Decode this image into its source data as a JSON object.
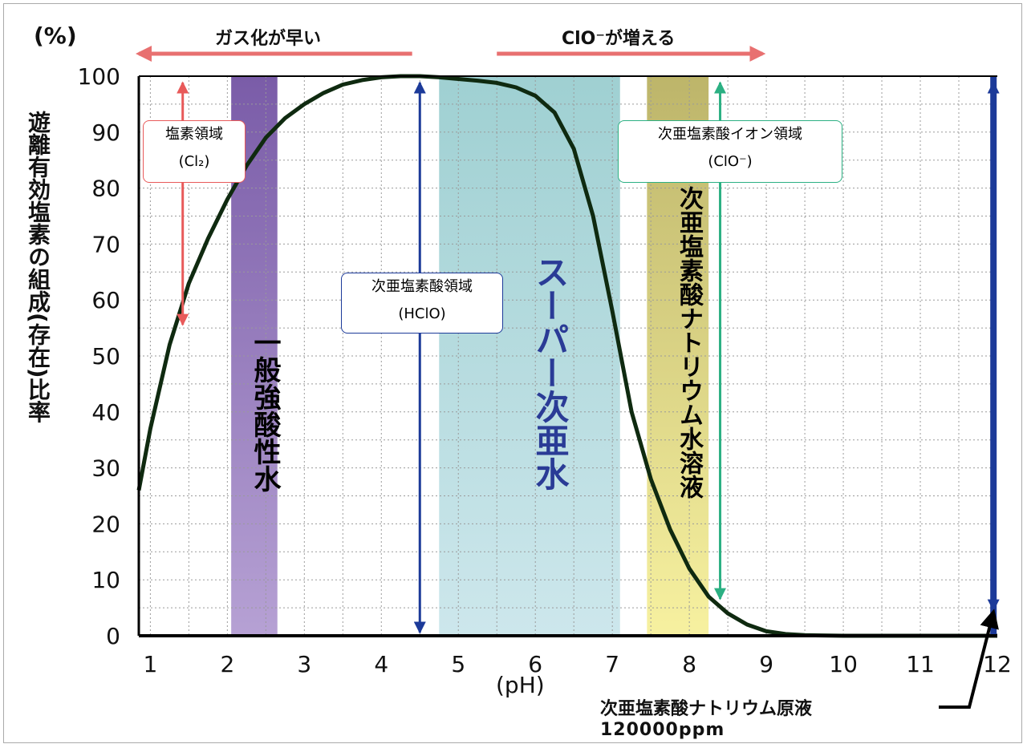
{
  "chart_data": {
    "type": "line",
    "unit_label": "(%)",
    "ylabel": "遊離有効塩素の組成(存在)比率",
    "xlabel": "(pH)",
    "xlim": [
      0.85,
      12
    ],
    "ylim": [
      0,
      100
    ],
    "x_ticks": [
      1,
      2,
      3,
      4,
      5,
      6,
      7,
      8,
      9,
      10,
      11,
      12
    ],
    "y_ticks": [
      0,
      10,
      20,
      30,
      40,
      50,
      60,
      70,
      80,
      90,
      100
    ],
    "grid": true,
    "series": [
      {
        "x": [
          0.85,
          1.0,
          1.25,
          1.5,
          1.75,
          2.0,
          2.25,
          2.5,
          2.75,
          3.0,
          3.25,
          3.5,
          3.75,
          4.0,
          4.25,
          4.5,
          4.75,
          5.0,
          5.25,
          5.5,
          5.75,
          6.0,
          6.25,
          6.5,
          6.75,
          7.0,
          7.25,
          7.5,
          7.75,
          8.0,
          8.25,
          8.5,
          8.75,
          9.0,
          9.25,
          9.5,
          10.0,
          11.0,
          12.0
        ],
        "values": [
          26,
          37,
          52,
          63,
          71,
          78,
          84,
          89,
          92.5,
          95,
          97,
          98.5,
          99.3,
          99.8,
          100,
          100,
          99.8,
          99.5,
          99.2,
          98.8,
          98,
          96.5,
          93.5,
          87,
          75,
          58,
          40,
          28,
          19,
          12,
          7,
          4,
          2,
          0.8,
          0.3,
          0.1,
          0,
          0,
          0
        ],
        "color": "#0f2a10"
      }
    ],
    "bands": [
      {
        "x0": 2.05,
        "x1": 2.65,
        "color_top": "#7a5ca8",
        "color_bottom": "#b6a1d4",
        "label": "一般強酸性水",
        "label_color": "#000000"
      },
      {
        "x0": 4.75,
        "x1": 7.1,
        "color_top": "#9fd0d2",
        "color_bottom": "#cde7ec",
        "label": "スーパー次亜水",
        "label_color": "#2a3b96"
      },
      {
        "x0": 7.45,
        "x1": 8.25,
        "color_top": "#bdb56a",
        "color_bottom": "#f7f1a0",
        "label": "次亜塩素酸ナトリウム水溶液",
        "label_color": "#000000"
      }
    ],
    "region_arrows": [
      {
        "x": 1.42,
        "y0": 100,
        "y1": 55,
        "color": "#e85a5a"
      },
      {
        "x": 4.5,
        "y0": 100,
        "y1": 0,
        "color": "#1c3a99"
      },
      {
        "x": 8.4,
        "y0": 100,
        "y1": 6,
        "color": "#2cb083"
      },
      {
        "x": 11.95,
        "y0": 100,
        "y1": 4,
        "color": "#1c3a99"
      }
    ],
    "top_arrows": [
      {
        "x0": 0.85,
        "x1": 4.4,
        "direction": "left",
        "text": "ガス化が早い",
        "color": "#e87070"
      },
      {
        "x0": 5.5,
        "x1": 8.95,
        "direction": "right",
        "text": "ClO⁻が増える",
        "color": "#e87070"
      }
    ],
    "annotations": [
      {
        "line1": "塩素領域",
        "line2": "(Cl₂)",
        "border": "#e85a5a"
      },
      {
        "line1": "次亜塩素酸領域",
        "line2": "(HClO)",
        "border": "#1c3a99"
      },
      {
        "line1": "次亜塩素酸イオン領域",
        "line2": "(ClO⁻)",
        "border": "#2cb083"
      }
    ],
    "callout": {
      "line1": "次亜塩素酸ナトリウム原液",
      "line2": "120000ppm"
    }
  }
}
